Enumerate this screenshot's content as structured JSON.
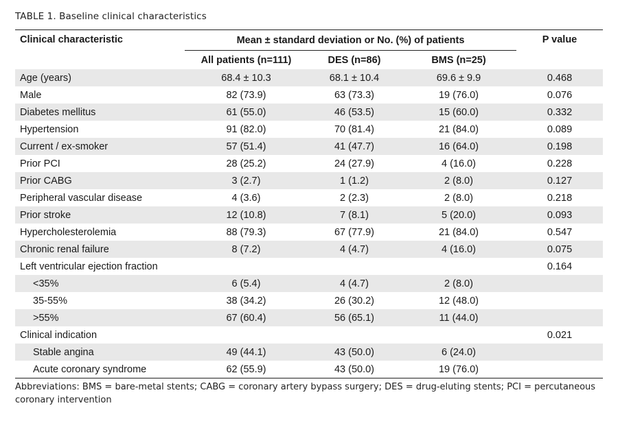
{
  "caption": "TABLE 1. Baseline clinical characteristics",
  "header": {
    "characteristic": "Clinical characteristic",
    "group": "Mean ± standard deviation or No. (%) of patients",
    "pvalue": "P value",
    "all": "All patients (n=111)",
    "des": "DES (n=86)",
    "bms": "BMS (n=25)"
  },
  "rows": [
    {
      "label": "Age (years)",
      "all": "68.4 ± 10.3",
      "des": "68.1 ± 10.4",
      "bms": "69.6 ± 9.9",
      "p": "0.468",
      "indent": false
    },
    {
      "label": "Male",
      "all": "82 (73.9)",
      "des": "63 (73.3)",
      "bms": "19 (76.0)",
      "p": "0.076",
      "indent": false
    },
    {
      "label": "Diabetes mellitus",
      "all": "61 (55.0)",
      "des": "46 (53.5)",
      "bms": "15 (60.0)",
      "p": "0.332",
      "indent": false
    },
    {
      "label": "Hypertension",
      "all": "91 (82.0)",
      "des": "70 (81.4)",
      "bms": "21 (84.0)",
      "p": "0.089",
      "indent": false
    },
    {
      "label": "Current / ex-smoker",
      "all": "57 (51.4)",
      "des": "41 (47.7)",
      "bms": "16 (64.0)",
      "p": "0.198",
      "indent": false
    },
    {
      "label": "Prior PCI",
      "all": "28 (25.2)",
      "des": "24 (27.9)",
      "bms": "4 (16.0)",
      "p": "0.228",
      "indent": false
    },
    {
      "label": "Prior CABG",
      "all": "3 (2.7)",
      "des": "1 (1.2)",
      "bms": "2 (8.0)",
      "p": "0.127",
      "indent": false
    },
    {
      "label": "Peripheral vascular disease",
      "all": "4 (3.6)",
      "des": "2 (2.3)",
      "bms": "2 (8.0)",
      "p": "0.218",
      "indent": false
    },
    {
      "label": "Prior stroke",
      "all": "12 (10.8)",
      "des": "7 (8.1)",
      "bms": "5 (20.0)",
      "p": "0.093",
      "indent": false
    },
    {
      "label": "Hypercholesterolemia",
      "all": "88 (79.3)",
      "des": "67 (77.9)",
      "bms": "21 (84.0)",
      "p": "0.547",
      "indent": false
    },
    {
      "label": "Chronic renal failure",
      "all": "8 (7.2)",
      "des": "4 (4.7)",
      "bms": "4 (16.0)",
      "p": "0.075",
      "indent": false
    },
    {
      "label": "Left ventricular ejection fraction",
      "all": "",
      "des": "",
      "bms": "",
      "p": "0.164",
      "indent": false
    },
    {
      "label": "<35%",
      "all": "6 (5.4)",
      "des": "4 (4.7)",
      "bms": "2 (8.0)",
      "p": "",
      "indent": true
    },
    {
      "label": "35-55%",
      "all": "38 (34.2)",
      "des": "26 (30.2)",
      "bms": "12 (48.0)",
      "p": "",
      "indent": true
    },
    {
      "label": ">55%",
      "all": "67 (60.4)",
      "des": "56 (65.1)",
      "bms": "11 (44.0)",
      "p": "",
      "indent": true
    },
    {
      "label": "Clinical indication",
      "all": "",
      "des": "",
      "bms": "",
      "p": "0.021",
      "indent": false
    },
    {
      "label": "Stable angina",
      "all": "49 (44.1)",
      "des": "43 (50.0)",
      "bms": "6 (24.0)",
      "p": "",
      "indent": true
    },
    {
      "label": "Acute coronary syndrome",
      "all": "62 (55.9)",
      "des": "43 (50.0)",
      "bms": "19 (76.0)",
      "p": "",
      "indent": true
    }
  ],
  "footnote": "Abbreviations: BMS = bare-metal stents; CABG = coronary artery bypass surgery; DES = drug-eluting stents; PCI = percutaneous coronary intervention"
}
